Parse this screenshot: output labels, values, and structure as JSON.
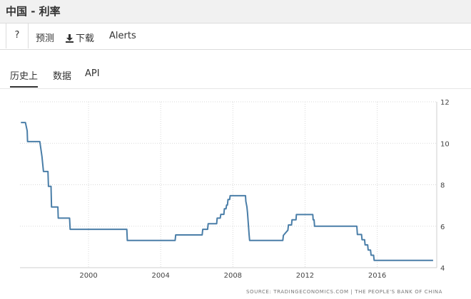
{
  "header": {
    "title": "中国 - 利率"
  },
  "toolbar": {
    "help_label": "?",
    "forecast_label": "预测",
    "download_label": "下载",
    "alerts_label": "Alerts"
  },
  "tabs": [
    {
      "label": "历史上",
      "active": true
    },
    {
      "label": "数据",
      "active": false
    },
    {
      "label": "API",
      "active": false
    }
  ],
  "footer": {
    "source": "SOURCE: TRADINGECONOMICS.COM | THE PEOPLE'S BANK OF CHINA"
  },
  "colors": {
    "line": "#4a7ea8",
    "grid": "#d9d9d9",
    "text": "#444444"
  },
  "chart_data": {
    "type": "line",
    "title": "",
    "xlabel": "",
    "ylabel": "",
    "xlim": [
      1996.2,
      2019.3
    ],
    "ylim": [
      4,
      12
    ],
    "x_ticks": [
      2000,
      2004,
      2008,
      2012,
      2016
    ],
    "y_ticks": [
      4,
      6,
      8,
      10,
      12
    ],
    "grid": true,
    "series": [
      {
        "name": "",
        "x": [
          1996.25,
          1996.5,
          1996.6,
          1996.62,
          1997.3,
          1997.42,
          1997.5,
          1997.52,
          1997.75,
          1997.78,
          1997.92,
          1997.95,
          1998.3,
          1998.32,
          1998.55,
          1998.58,
          1998.95,
          1998.98,
          1999.45,
          1999.48,
          2002.12,
          2002.15,
          2004.8,
          2004.83,
          2006.3,
          2006.33,
          2006.6,
          2006.63,
          2007.1,
          2007.13,
          2007.3,
          2007.33,
          2007.5,
          2007.53,
          2007.62,
          2007.65,
          2007.7,
          2007.73,
          2007.82,
          2007.85,
          2007.93,
          2007.96,
          2008.25,
          2008.7,
          2008.72,
          2008.78,
          2008.81,
          2008.9,
          2008.93,
          2008.98,
          2009.0,
          2010.77,
          2010.8,
          2011.05,
          2011.08,
          2011.25,
          2011.28,
          2011.5,
          2011.52,
          2012.43,
          2012.45,
          2012.5,
          2012.53,
          2014.87,
          2014.9,
          2015.13,
          2015.16,
          2015.3,
          2015.33,
          2015.47,
          2015.5,
          2015.63,
          2015.66,
          2015.8,
          2015.83,
          2019.1
        ],
        "values": [
          11,
          11,
          10.6,
          10.08,
          10.08,
          9.36,
          8.64,
          8.64,
          8.64,
          7.92,
          7.92,
          6.93,
          6.93,
          6.39,
          6.39,
          6.39,
          6.39,
          5.85,
          5.85,
          5.85,
          5.85,
          5.31,
          5.31,
          5.58,
          5.58,
          5.85,
          5.85,
          6.12,
          6.12,
          6.39,
          6.39,
          6.57,
          6.57,
          6.84,
          6.84,
          7.02,
          7.02,
          7.29,
          7.29,
          7.47,
          7.47,
          7.47,
          7.47,
          7.47,
          7.2,
          6.93,
          6.66,
          5.58,
          5.31,
          5.31,
          5.31,
          5.31,
          5.56,
          5.81,
          6.06,
          6.06,
          6.31,
          6.31,
          6.56,
          6.56,
          6.31,
          6.31,
          6.0,
          6.0,
          5.6,
          5.6,
          5.35,
          5.35,
          5.1,
          5.1,
          4.85,
          4.85,
          4.6,
          4.6,
          4.35,
          4.35
        ]
      }
    ]
  }
}
